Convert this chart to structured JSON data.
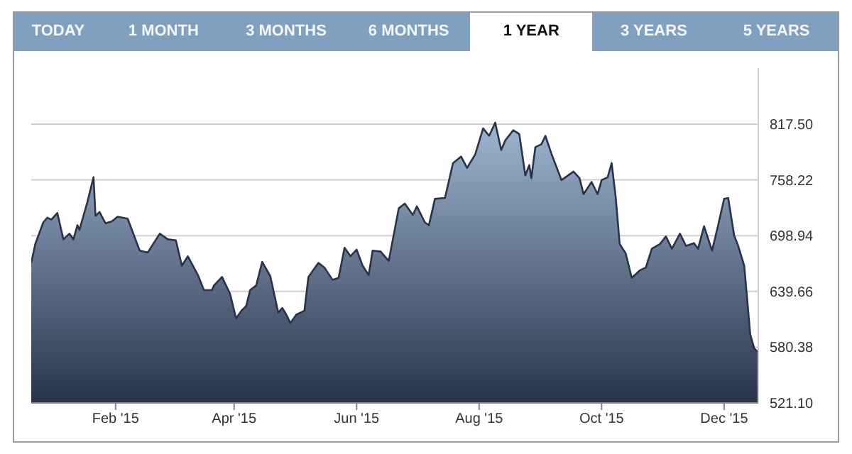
{
  "chart_data": {
    "type": "area",
    "annotations": [
      "TODAY",
      "1 MONTH",
      "3 MONTHS",
      "6 MONTHS",
      "1 YEAR",
      "3 YEARS",
      "5 YEARS"
    ],
    "x": [
      "2014-12-21",
      "2014-12-23",
      "2014-12-27",
      "2014-12-29",
      "2014-12-31",
      "2015-01-03",
      "2015-01-06",
      "2015-01-09",
      "2015-01-11",
      "2015-01-13",
      "2015-01-14",
      "2015-01-18",
      "2015-01-21",
      "2015-01-22",
      "2015-01-24",
      "2015-01-27",
      "2015-01-30",
      "2015-02-02",
      "2015-02-07",
      "2015-02-13",
      "2015-02-17",
      "2015-02-23",
      "2015-02-27",
      "2015-03-03",
      "2015-03-06",
      "2015-03-09",
      "2015-03-14",
      "2015-03-17",
      "2015-03-21",
      "2015-03-22",
      "2015-03-26",
      "2015-03-30",
      "2015-04-02",
      "2015-04-05",
      "2015-04-07",
      "2015-04-09",
      "2015-04-12",
      "2015-04-15",
      "2015-04-19",
      "2015-04-23",
      "2015-04-25",
      "2015-04-27",
      "2015-04-29",
      "2015-05-02",
      "2015-05-06",
      "2015-05-08",
      "2015-05-13",
      "2015-05-16",
      "2015-05-20",
      "2015-05-23",
      "2015-05-26",
      "2015-05-29",
      "2015-06-01",
      "2015-06-04",
      "2015-06-07",
      "2015-06-09",
      "2015-06-13",
      "2015-06-17",
      "2015-06-22",
      "2015-06-25",
      "2015-06-29",
      "2015-07-01",
      "2015-07-05",
      "2015-07-07",
      "2015-07-10",
      "2015-07-15",
      "2015-07-19",
      "2015-07-23",
      "2015-07-26",
      "2015-07-30",
      "2015-08-03",
      "2015-08-06",
      "2015-08-09",
      "2015-08-12",
      "2015-08-14",
      "2015-08-18",
      "2015-08-21",
      "2015-08-24",
      "2015-08-26",
      "2015-08-27",
      "2015-08-29",
      "2015-09-01",
      "2015-09-03",
      "2015-09-06",
      "2015-09-11",
      "2015-09-17",
      "2015-09-20",
      "2015-09-22",
      "2015-09-26",
      "2015-09-29",
      "2015-10-01",
      "2015-10-04",
      "2015-10-06",
      "2015-10-08",
      "2015-10-10",
      "2015-10-13",
      "2015-10-16",
      "2015-10-20",
      "2015-10-23",
      "2015-10-26",
      "2015-10-30",
      "2015-11-02",
      "2015-11-05",
      "2015-11-09",
      "2015-11-12",
      "2015-11-16",
      "2015-11-18",
      "2015-11-21",
      "2015-11-25",
      "2015-11-28",
      "2015-12-01",
      "2015-12-03",
      "2015-12-06",
      "2015-12-08",
      "2015-12-11",
      "2015-12-14",
      "2015-12-16",
      "2015-12-18"
    ],
    "series": [
      {
        "color": "#28334a",
        "values": [
          670,
          690,
          713,
          718,
          716,
          723,
          695,
          701,
          695,
          710,
          705,
          735,
          761,
          720,
          724,
          712,
          714,
          719,
          717,
          683,
          681,
          701,
          695,
          694,
          667,
          677,
          657,
          641,
          641,
          646,
          655,
          637,
          611,
          620,
          624,
          641,
          646,
          671,
          656,
          617,
          622,
          615,
          606,
          615,
          619,
          655,
          670,
          665,
          652,
          654,
          686,
          677,
          684,
          667,
          657,
          683,
          682,
          672,
          728,
          733,
          721,
          730,
          713,
          710,
          738,
          739,
          776,
          783,
          771,
          785,
          813,
          805,
          819,
          790,
          800,
          811,
          807,
          763,
          774,
          760,
          793,
          796,
          805,
          786,
          758,
          767,
          760,
          743,
          756,
          743,
          758,
          761,
          776,
          740,
          690,
          680,
          654,
          662,
          665,
          685,
          690,
          698,
          685,
          701,
          688,
          691,
          685,
          709,
          683,
          710,
          738,
          739,
          699,
          688,
          667,
          594,
          579,
          575
        ]
      }
    ],
    "ylim": [
      521.1,
      877
    ],
    "yticks": [
      {
        "value": 521.1,
        "label": "521.10"
      },
      {
        "value": 580.38,
        "label": "580.38"
      },
      {
        "value": 639.66,
        "label": "639.66"
      },
      {
        "value": 698.94,
        "label": "698.94"
      },
      {
        "value": 758.22,
        "label": "758.22"
      },
      {
        "value": 817.5,
        "label": "817.50"
      }
    ],
    "xlim": [
      "2014-12-21",
      "2015-12-18"
    ],
    "xticks": [
      {
        "value": "2015-02-01",
        "label": "Feb '15"
      },
      {
        "value": "2015-04-01",
        "label": "Apr '15"
      },
      {
        "value": "2015-06-01",
        "label": "Jun '15"
      },
      {
        "value": "2015-08-01",
        "label": "Aug '15"
      },
      {
        "value": "2015-10-01",
        "label": "Oct '15"
      },
      {
        "value": "2015-12-01",
        "label": "Dec '15"
      }
    ],
    "grid": "y"
  }
}
